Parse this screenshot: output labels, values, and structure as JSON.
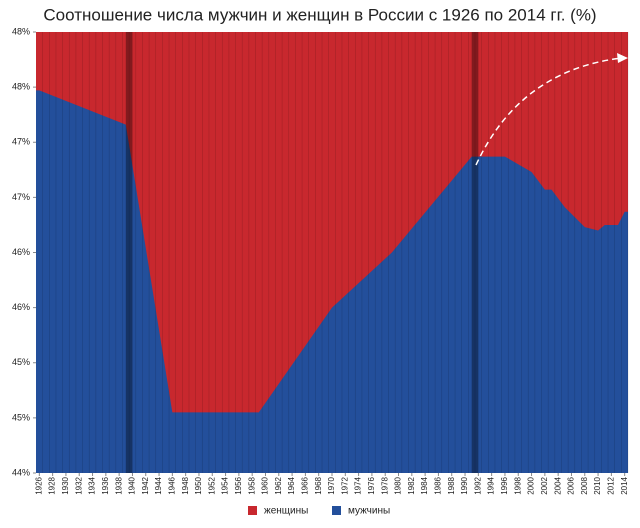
{
  "chart_data": {
    "type": "area",
    "title": "Соотношение числа мужчин и женщин в России с 1926 по 2014 гг. (%)",
    "x": [
      1926,
      1939,
      1946,
      1959,
      1970,
      1979,
      1991,
      1996,
      2000,
      2002,
      2003,
      2005,
      2008,
      2010,
      2011,
      2013,
      2014
    ],
    "series": [
      {
        "name": "женщины",
        "color": "#c8282e",
        "fill_to": "top"
      },
      {
        "name": "мужчины",
        "color": "#234f9b",
        "values": [
          47.47,
          47.16,
          44.55,
          44.55,
          45.5,
          46.0,
          46.87,
          46.87,
          46.73,
          46.57,
          46.57,
          46.41,
          46.23,
          46.2,
          46.25,
          46.25,
          46.37
        ]
      }
    ],
    "xlim": [
      1925.5,
      2014.5
    ],
    "xticks": [
      1926,
      1928,
      1930,
      1932,
      1934,
      1936,
      1938,
      1940,
      1942,
      1944,
      1946,
      1948,
      1950,
      1952,
      1954,
      1956,
      1958,
      1960,
      1962,
      1964,
      1966,
      1968,
      1970,
      1972,
      1974,
      1976,
      1978,
      1980,
      1982,
      1984,
      1986,
      1988,
      1990,
      1992,
      1994,
      1996,
      1998,
      2000,
      2002,
      2004,
      2006,
      2008,
      2010,
      2012,
      2014
    ],
    "ylim": [
      44,
      48
    ],
    "yticks": [
      {
        "value": 44,
        "label": "44%"
      },
      {
        "value": 44.5,
        "label": "45%"
      },
      {
        "value": 45,
        "label": "45%"
      },
      {
        "value": 45.5,
        "label": "46%"
      },
      {
        "value": 46,
        "label": "46%"
      },
      {
        "value": 46.5,
        "label": "47%"
      },
      {
        "value": 47,
        "label": "47%"
      },
      {
        "value": 47.5,
        "label": "48%"
      },
      {
        "value": 48,
        "label": "48%"
      }
    ],
    "highlight_years": [
      1939,
      1991
    ],
    "legend": "bottom"
  }
}
